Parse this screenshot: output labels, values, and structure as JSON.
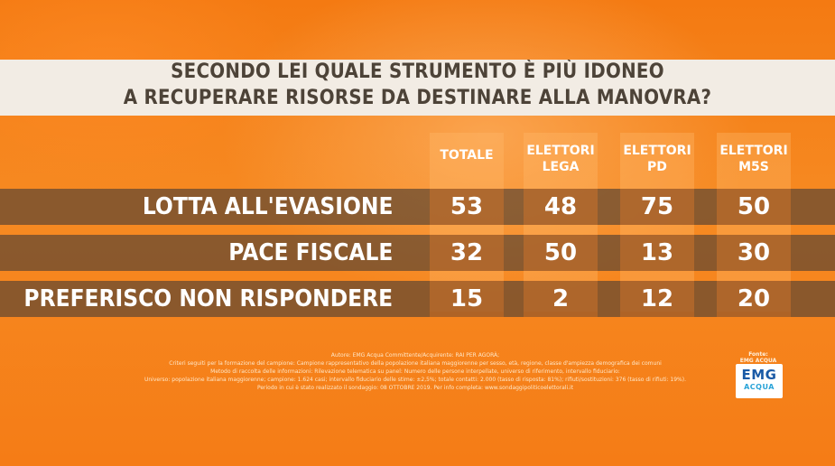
{
  "title": {
    "line1": "SECONDO LEI QUALE STRUMENTO È PIÙ IDONEO",
    "line2": "A RECUPERARE RISORSE DA DESTINARE ALLA MANOVRA?"
  },
  "chart_data": {
    "type": "table",
    "columns": [
      "TOTALE",
      "ELETTORI\nLEGA",
      "ELETTORI\nPD",
      "ELETTORI\nM5S"
    ],
    "rows": [
      {
        "label": "LOTTA ALL'EVASIONE",
        "values": [
          "53",
          "48",
          "75",
          "50"
        ]
      },
      {
        "label": "PACE FISCALE",
        "values": [
          "32",
          "50",
          "13",
          "30"
        ]
      },
      {
        "label": "PREFERISCO NON RISPONDERE",
        "values": [
          "15",
          "2",
          "12",
          "20"
        ]
      }
    ]
  },
  "footnotes": [
    "Autore: EMG Acqua Committente/Acquirente: RAI PER AGORÀ;",
    "Criteri seguiti per la formazione del campione: Campione rappresentativo della popolazione italiana maggiorenne per sesso, età, regione, classe d'ampiezza demografica dei comuni",
    "Metodo di raccolta delle informazioni: Rilevazione telematica su panel: Numero delle persone interpellate, universo di riferimento, intervallo fiduciario:",
    "Universo: popolazione italiana maggiorenne; campione: 1.624 casi; intervallo fiduciario delle stime: ±2,5%; totale contatti: 2.000 (tasso di risposta: 81%); rifiuti/sostituzioni: 376 (tasso di rifiuti: 19%).",
    "Periodo in cui è stato realizzato il sondaggio: 08 OTTOBRE 2019. Per info completa: www.sondaggipoliticoelettorali.it"
  ],
  "source": {
    "label": "Fonte:",
    "group": "EMG ACQUA GROUP",
    "logo_top": "EMG",
    "logo_bottom": "ACQUA"
  },
  "colors": {
    "background": "#f47a12",
    "title_band": "#f2ece4",
    "title_text": "#4d4338",
    "row_band": "#5f4632"
  }
}
